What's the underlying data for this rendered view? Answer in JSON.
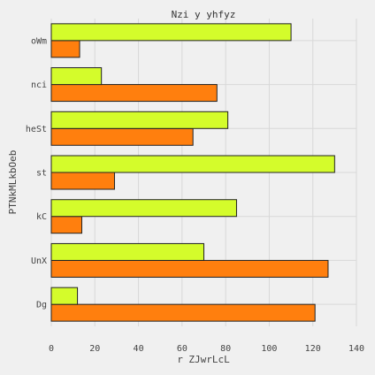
{
  "chart_data": {
    "type": "bar",
    "orientation": "horizontal",
    "title": "Nzi y yhfyz",
    "xlabel": "r ZJwrLcL",
    "ylabel": "PTNkMLkbOeb",
    "categories": [
      "Dg",
      "UnX",
      "kC",
      "st",
      "heSt",
      "nci",
      "oWm"
    ],
    "series": [
      {
        "values": [
          121,
          127,
          14,
          29,
          65,
          76,
          13
        ],
        "color": "#ff7f0e"
      },
      {
        "values": [
          12,
          70,
          85,
          130,
          81,
          23,
          110
        ],
        "color": "#d4fc2b"
      }
    ],
    "xlim": [
      0,
      140
    ],
    "xticks": [
      0,
      20,
      40,
      60,
      80,
      100,
      120,
      140
    ],
    "grid": true
  }
}
